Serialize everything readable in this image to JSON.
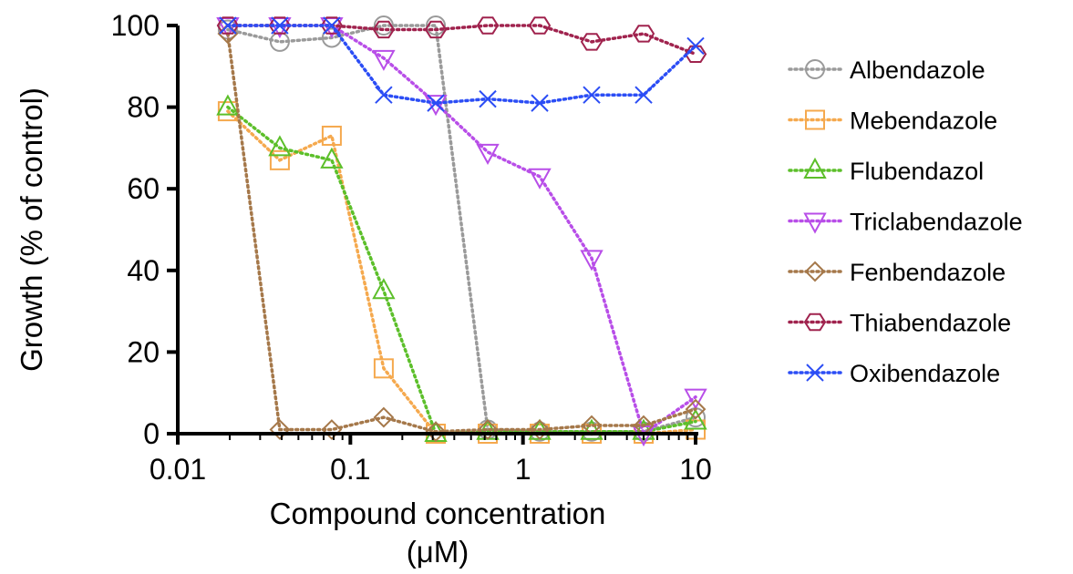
{
  "chart_data": {
    "type": "line",
    "xscale": "log",
    "xlim": [
      0.01,
      10
    ],
    "ylim": [
      0,
      100
    ],
    "xticks": [
      0.01,
      0.1,
      1,
      10
    ],
    "xtick_labels": [
      "0.01",
      "0.1",
      "1",
      "10"
    ],
    "yticks": [
      0,
      20,
      40,
      60,
      80,
      100
    ],
    "ytick_labels": [
      "0",
      "20",
      "40",
      "60",
      "80",
      "100"
    ],
    "xlabel_line1": "Compound concentration",
    "xlabel_line2": "(μM)",
    "ylabel": "Growth (% of control)",
    "grid": false,
    "legend_position": "right",
    "line_style": "dotted",
    "x": [
      0.0195,
      0.039,
      0.078,
      0.156,
      0.3125,
      0.625,
      1.25,
      2.5,
      5,
      10
    ],
    "series": [
      {
        "name": "Albendazole",
        "color": "#9a9a9a",
        "marker": "circle",
        "values": [
          99,
          96,
          97,
          100,
          100,
          1,
          0.5,
          0.5,
          0.5,
          4
        ]
      },
      {
        "name": "Mebendazole",
        "color": "#f5a94e",
        "marker": "square",
        "values": [
          79,
          67,
          73,
          16,
          0,
          0,
          0,
          0,
          0,
          1
        ]
      },
      {
        "name": "Flubendazol",
        "color": "#5cbf2a",
        "marker": "triangle-up",
        "values": [
          80,
          70,
          67,
          35,
          0,
          0.5,
          0.5,
          0.5,
          0.5,
          3
        ]
      },
      {
        "name": "Triclabendazole",
        "color": "#b84ee8",
        "marker": "triangle-down",
        "values": [
          100,
          100,
          100,
          92,
          81,
          69,
          63,
          43,
          0,
          9
        ]
      },
      {
        "name": "Fenbendazole",
        "color": "#a5784a",
        "marker": "diamond",
        "values": [
          98,
          1,
          1,
          4,
          0.5,
          1,
          1,
          2,
          2,
          6
        ]
      },
      {
        "name": "Thiabendazole",
        "color": "#a0234e",
        "marker": "hexagon",
        "values": [
          100,
          100,
          100,
          99,
          99,
          100,
          100,
          96,
          98,
          93
        ]
      },
      {
        "name": "Oxibendazole",
        "color": "#2b4df5",
        "marker": "x",
        "values": [
          100,
          100,
          100,
          83,
          81,
          82,
          81,
          83,
          83,
          95
        ]
      }
    ]
  }
}
